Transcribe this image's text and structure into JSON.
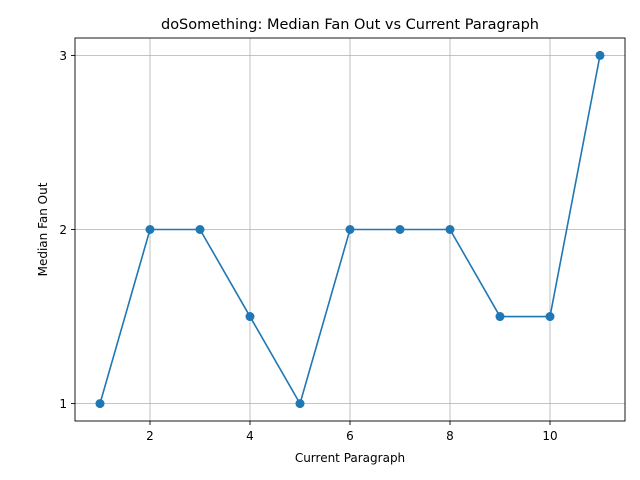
{
  "chart_data": {
    "type": "line",
    "title": "doSomething: Median Fan Out vs Current Paragraph",
    "xlabel": "Current Paragraph",
    "ylabel": "Median Fan Out",
    "x": [
      1,
      2,
      3,
      4,
      5,
      6,
      7,
      8,
      9,
      10,
      11
    ],
    "y": [
      1,
      2,
      2,
      1.5,
      1,
      2,
      2,
      2,
      1.5,
      1.5,
      3
    ],
    "xlim": [
      0.5,
      11.5
    ],
    "ylim": [
      0.9,
      3.1
    ],
    "xticks": [
      2,
      4,
      6,
      8,
      10
    ],
    "yticks": [
      1,
      2,
      3
    ],
    "grid": true,
    "marker": "circle",
    "color": "#1f77b4"
  }
}
